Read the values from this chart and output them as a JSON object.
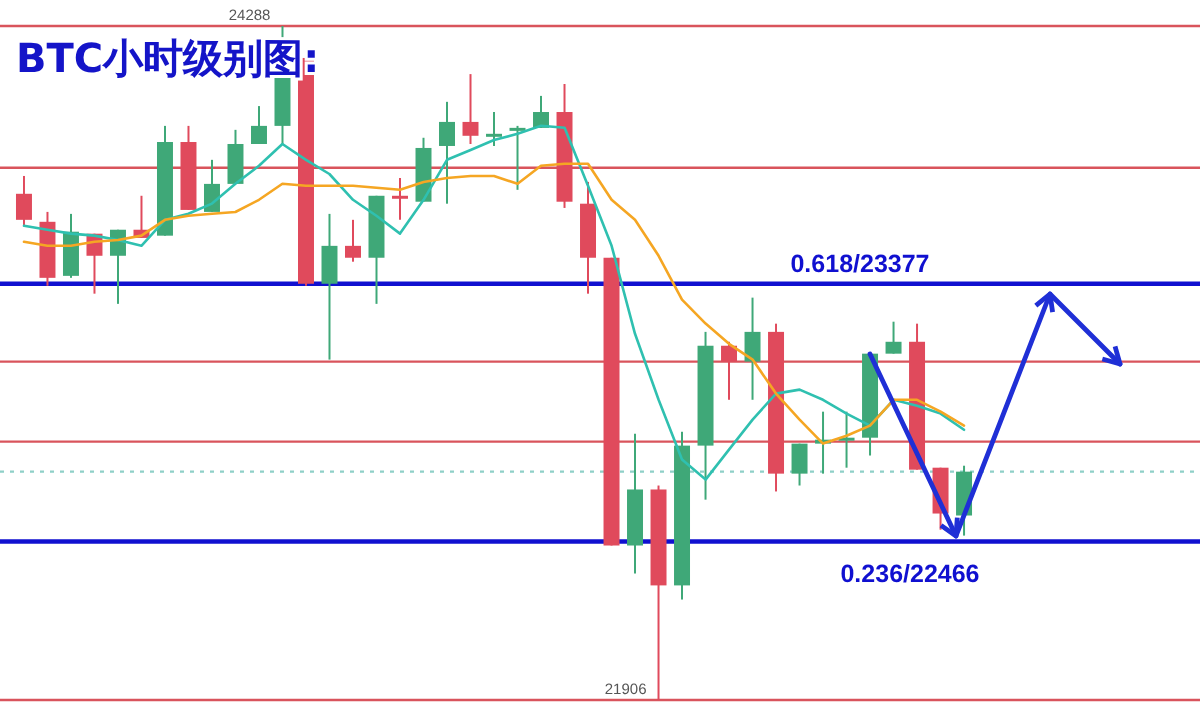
{
  "chart_data": {
    "type": "candlestick",
    "title": "BTC小时级别图:",
    "categories": [
      null,
      null,
      null,
      null,
      null,
      null,
      null,
      null,
      null,
      null,
      null,
      null,
      null,
      null,
      null,
      null,
      null,
      null,
      null,
      null,
      null,
      null,
      null,
      null,
      null,
      null,
      null,
      null,
      null,
      null,
      null,
      null,
      null,
      null,
      null,
      null,
      null,
      null,
      null,
      null,
      null
    ],
    "ohlc": [
      [
        23695,
        23758,
        23582,
        23603
      ],
      [
        23596,
        23631,
        23370,
        23398
      ],
      [
        23405,
        23624,
        23398,
        23561
      ],
      [
        23554,
        23554,
        23342,
        23476
      ],
      [
        23476,
        23568,
        23306,
        23568
      ],
      [
        23568,
        23688,
        23539,
        23539
      ],
      [
        23547,
        23935,
        23547,
        23878
      ],
      [
        23878,
        23935,
        23638,
        23638
      ],
      [
        23631,
        23815,
        23631,
        23730
      ],
      [
        23730,
        23921,
        23730,
        23871
      ],
      [
        23871,
        24005,
        23871,
        23935
      ],
      [
        23935,
        24288,
        23871,
        24118
      ],
      [
        24175,
        24175,
        23370,
        23377
      ],
      [
        23377,
        23624,
        23109,
        23511
      ],
      [
        23511,
        23603,
        23455,
        23469
      ],
      [
        23469,
        23688,
        23306,
        23688
      ],
      [
        23688,
        23751,
        23603,
        23681
      ],
      [
        23667,
        23893,
        23667,
        23857
      ],
      [
        23864,
        24020,
        23660,
        23949
      ],
      [
        23949,
        24118,
        23871,
        23900
      ],
      [
        23900,
        23984,
        23864,
        23907
      ],
      [
        23921,
        23935,
        23709,
        23928
      ],
      [
        23928,
        24041,
        23928,
        23984
      ],
      [
        23984,
        24083,
        23645,
        23667
      ],
      [
        23660,
        23737,
        23342,
        23469
      ],
      [
        23469,
        23469,
        22452,
        22452
      ],
      [
        22452,
        22847,
        22353,
        22650
      ],
      [
        22650,
        22664,
        21906,
        22311
      ],
      [
        22311,
        22854,
        22261,
        22805
      ],
      [
        22805,
        23207,
        22614,
        23158
      ],
      [
        23158,
        23172,
        22967,
        23102
      ],
      [
        23102,
        23328,
        22967,
        23207
      ],
      [
        23207,
        23236,
        22643,
        22706
      ],
      [
        22706,
        22812,
        22664,
        22812
      ],
      [
        22812,
        22925,
        22706,
        22826
      ],
      [
        22826,
        22925,
        22727,
        22833
      ],
      [
        22833,
        23130,
        22770,
        23130
      ],
      [
        23130,
        23243,
        23130,
        23172
      ],
      [
        23172,
        23236,
        22720,
        22720
      ],
      [
        22727,
        22727,
        22508,
        22565
      ],
      [
        22558,
        22734,
        22487,
        22713
      ]
    ],
    "colors": [
      "#e04a5c",
      "#e04a5c",
      "#3fa878",
      "#e04a5c",
      "#3fa878",
      "#e04a5c",
      "#3fa878",
      "#e04a5c",
      "#3fa878",
      "#3fa878",
      "#3fa878",
      "#3fa878",
      "#e04a5c",
      "#3fa878",
      "#e04a5c",
      "#3fa878",
      "#e04a5c",
      "#3fa878",
      "#3fa878",
      "#e04a5c",
      "#3fa878",
      "#3fa878",
      "#3fa878",
      "#e04a5c",
      "#e04a5c",
      "#e04a5c",
      "#3fa878",
      "#e04a5c",
      "#3fa878",
      "#3fa878",
      "#e04a5c",
      "#3fa878",
      "#e04a5c",
      "#3fa878",
      "#3fa878",
      "#3fa878",
      "#3fa878",
      "#3fa878",
      "#e04a5c",
      "#e04a5c",
      "#3fa878"
    ],
    "series": [
      {
        "type": "line",
        "color": "#2fc0b0",
        "values": [
          23582,
          23568,
          23554,
          23547,
          23532,
          23511,
          23603,
          23624,
          23660,
          23730,
          23794,
          23871,
          23815,
          23765,
          23674,
          23617,
          23554,
          23674,
          23815,
          23850,
          23885,
          23907,
          23935,
          23928,
          23723,
          23511,
          23200,
          22967,
          22756,
          22685,
          22791,
          22897,
          22989,
          23003,
          22967,
          22918,
          22876,
          22967,
          22946,
          22918,
          22861
        ]
      },
      {
        "type": "line",
        "color": "#f5a623",
        "values": [
          23525,
          23511,
          23511,
          23525,
          23532,
          23547,
          23603,
          23617,
          23624,
          23631,
          23674,
          23730,
          23723,
          23723,
          23723,
          23716,
          23709,
          23737,
          23751,
          23758,
          23758,
          23730,
          23794,
          23801,
          23801,
          23674,
          23603,
          23476,
          23321,
          23236,
          23165,
          23109,
          22989,
          22897,
          22812,
          22840,
          22876,
          22967,
          22967,
          22925,
          22876
        ]
      }
    ],
    "ref_lines": [
      {
        "axis": "y",
        "value": 24288,
        "color": "#d9545c",
        "line_style": "solid"
      },
      {
        "axis": "y",
        "value": 23787,
        "color": "#d9545c",
        "line_style": "solid"
      },
      {
        "axis": "y",
        "value": 23377,
        "color": "#1010d0",
        "line_style": "solid",
        "label": "0.618/23377"
      },
      {
        "axis": "y",
        "value": 23102,
        "color": "#d9545c",
        "line_style": "solid"
      },
      {
        "axis": "y",
        "value": 22819,
        "color": "#d9545c",
        "line_style": "solid"
      },
      {
        "axis": "y",
        "value": 22713,
        "color": "#8fd0c8",
        "line_style": "dotted"
      },
      {
        "axis": "y",
        "value": 22466,
        "color": "#1010d0",
        "line_style": "solid",
        "label": "0.236/22466"
      },
      {
        "axis": "y",
        "value": 21906,
        "color": "#d9545c",
        "line_style": "solid"
      }
    ],
    "annotations": [
      {
        "text": "24288",
        "y": 24288
      },
      {
        "text": "21906",
        "y": 21906
      }
    ]
  }
}
